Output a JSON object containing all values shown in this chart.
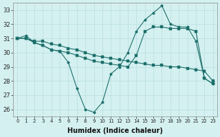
{
  "xlabel": "Humidex (Indice chaleur)",
  "bg_color": "#d4f0f0",
  "grid_color": "#b8dede",
  "line_color": "#1a6e6a",
  "x": [
    0,
    1,
    2,
    3,
    4,
    5,
    6,
    7,
    8,
    9,
    10,
    11,
    12,
    13,
    14,
    15,
    16,
    17,
    18,
    19,
    20,
    21,
    22,
    23
  ],
  "series1": [
    31.0,
    31.0,
    30.8,
    30.8,
    30.6,
    30.5,
    30.3,
    30.2,
    30.0,
    29.8,
    29.7,
    29.6,
    29.5,
    29.4,
    29.3,
    29.2,
    29.1,
    29.1,
    29.0,
    29.0,
    28.9,
    28.8,
    28.7,
    28.0
  ],
  "series2": [
    31.0,
    31.2,
    30.7,
    30.5,
    30.2,
    30.1,
    29.3,
    27.5,
    26.0,
    25.8,
    26.5,
    28.5,
    29.0,
    30.0,
    31.5,
    32.3,
    32.8,
    33.3,
    32.0,
    31.8,
    31.8,
    30.8,
    28.2,
    27.8
  ],
  "series3": [
    31.0,
    31.0,
    30.7,
    30.5,
    30.2,
    30.1,
    30.0,
    29.8,
    29.6,
    29.4,
    29.3,
    29.2,
    29.1,
    29.0,
    29.8,
    31.5,
    31.8,
    31.8,
    31.7,
    31.7,
    31.7,
    31.5,
    28.2,
    27.8
  ],
  "ylim": [
    25.5,
    33.5
  ],
  "yticks": [
    26,
    27,
    28,
    29,
    30,
    31,
    32,
    33
  ],
  "xlim": [
    -0.5,
    23.5
  ]
}
